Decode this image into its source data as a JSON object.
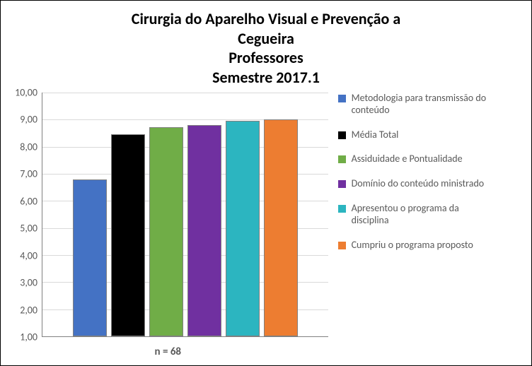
{
  "chart": {
    "type": "bar",
    "title_lines": [
      "Cirurgia do Aparelho Visual e Prevenção a",
      "Cegueira",
      "Professores",
      "Semestre 2017.1"
    ],
    "title_fontsize": 22,
    "xlabel": "n = 68",
    "xlabel_fontsize": 15,
    "ylim_min": 1.0,
    "ylim_max": 10.0,
    "ytick_positions": [
      1.0,
      2.0,
      3.0,
      4.0,
      5.0,
      6.0,
      7.0,
      8.0,
      9.0,
      10.0
    ],
    "ytick_labels": [
      "1,00",
      "2,00",
      "3,00",
      "4,00",
      "5,00",
      "6,00",
      "7,00",
      "8,00",
      "9,00",
      "10,00"
    ],
    "ytick_fontsize": 14,
    "legend_fontsize": 14,
    "grid_color": "#d9d9d9",
    "axis_color": "#808080",
    "background_color": "#ffffff",
    "series": [
      {
        "label": "Metodologia para transmissão do conteúdo",
        "value": 6.8,
        "color": "#4472c4"
      },
      {
        "label": "Média Total",
        "value": 8.45,
        "color": "#000000"
      },
      {
        "label": "Assiduidade e Pontualidade",
        "value": 8.72,
        "color": "#70ad47"
      },
      {
        "label": "Domínio do conteúdo ministrado",
        "value": 8.8,
        "color": "#7030a0"
      },
      {
        "label": "Apresentou o programa da disciplina",
        "value": 8.95,
        "color": "#2cb5c0"
      },
      {
        "label": "Cumpriu o programa proposto",
        "value": 9.0,
        "color": "#ed7d31"
      }
    ]
  }
}
